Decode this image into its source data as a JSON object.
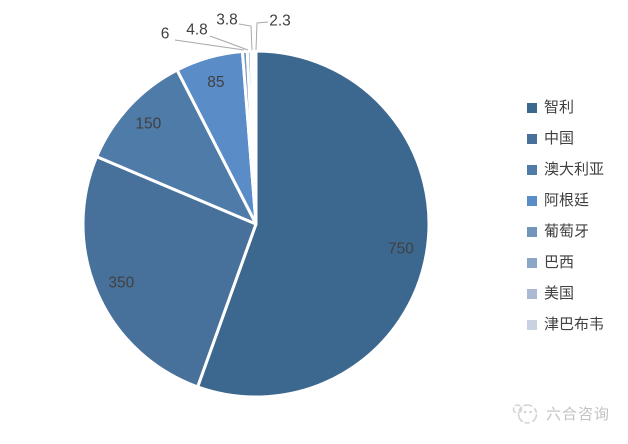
{
  "chart_data": {
    "type": "pie",
    "title": "",
    "categories": [
      "智利",
      "中国",
      "澳大利亚",
      "阿根廷",
      "葡萄牙",
      "巴西",
      "美国",
      "津巴布韦"
    ],
    "values": [
      750,
      350,
      150,
      85,
      6,
      4.8,
      3.8,
      2.3
    ],
    "data_labels": [
      "750",
      "350",
      "150",
      "85",
      "6",
      "4.8",
      "3.8",
      "2.3"
    ],
    "colors": [
      "#3C688F",
      "#47719B",
      "#4E7BA7",
      "#5A8CC8",
      "#7295BA",
      "#8CA7C5",
      "#A9BAD2",
      "#C8D2E1"
    ],
    "slice_border_color": "#FFFFFF",
    "data_label_color": "#404040",
    "leader_line_color": "#A8A8A8",
    "start_angle_deg": 0,
    "direction": "clockwise",
    "legend_position": "right",
    "legend_text_color": "#404040",
    "background_color": "#FFFFFF",
    "grid": "off"
  },
  "watermark": {
    "text": "六合咨询",
    "logo": "liuhe-logo",
    "color": "#C2C2C2"
  }
}
